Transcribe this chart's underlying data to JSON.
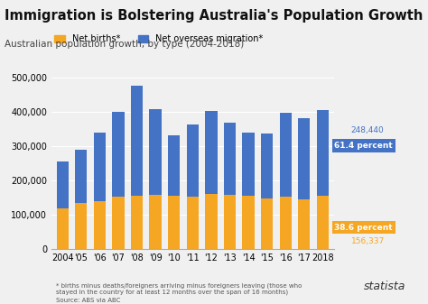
{
  "title": "Immigration is Bolstering Australia's Population Growth",
  "subtitle": "Australian population growth, by type (2004-2018)",
  "years": [
    "2004",
    "'05",
    "'06",
    "'07",
    "'08",
    "'09",
    "'10",
    "'11",
    "'12",
    "'13",
    "'14",
    "'15",
    "'16",
    "'17",
    "2018"
  ],
  "net_births": [
    120000,
    135000,
    140000,
    152000,
    155000,
    157000,
    155000,
    152000,
    160000,
    157000,
    155000,
    148000,
    152000,
    145000,
    156337
  ],
  "net_migration": [
    135000,
    155000,
    200000,
    248000,
    320000,
    250000,
    175000,
    210000,
    243000,
    210000,
    185000,
    188000,
    245000,
    237000,
    248440
  ],
  "bar_color_births": "#f5a623",
  "bar_color_migration": "#4472c4",
  "bg_color": "#f0f0f0",
  "annotation_blue_text": "61.4 percent",
  "annotation_orange_text": "38.6 percent",
  "annotation_248": "248,440",
  "annotation_156": "156,337",
  "footnote": "* births minus deaths/foreigners arriving minus foreigners leaving (those who\nstayed in the country for at least 12 months over the span of 16 months)",
  "source": "Source: ABS via ABC",
  "legend_births": "Net births*",
  "legend_migration": "Net overseas migration*",
  "ylim": [
    0,
    530000
  ],
  "yticks": [
    0,
    100000,
    200000,
    300000,
    400000,
    500000
  ]
}
